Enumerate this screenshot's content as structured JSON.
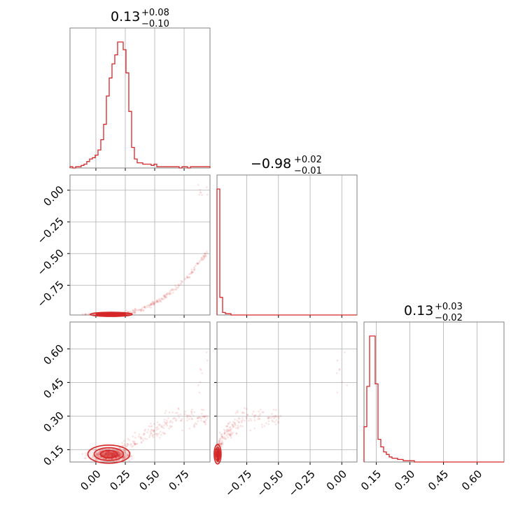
{
  "chart_data": {
    "type": "corner",
    "color": "#d62728",
    "parameters": [
      {
        "title": "0.13",
        "plus": "+0.08",
        "minus": "−0.10"
      },
      {
        "title": "−0.98",
        "plus": "+0.02",
        "minus": "−0.01"
      },
      {
        "title": "0.13",
        "plus": "+0.03",
        "minus": "−0.02"
      }
    ],
    "axes": [
      {
        "range": [
          -0.22,
          0.97
        ],
        "ticks": [
          0.0,
          0.25,
          0.5,
          0.75
        ],
        "tick_labels": [
          "0.00",
          "0.25",
          "0.50",
          "0.75"
        ]
      },
      {
        "range": [
          -0.985,
          0.12
        ],
        "ticks": [
          -0.75,
          -0.5,
          -0.25,
          0.0
        ],
        "tick_labels": [
          "−0.75",
          "−0.50",
          "−0.25",
          "0.00"
        ]
      },
      {
        "range": [
          0.095,
          0.72
        ],
        "ticks": [
          0.15,
          0.3,
          0.45,
          0.6
        ],
        "tick_labels": [
          "0.15",
          "0.30",
          "0.45",
          "0.60"
        ]
      }
    ],
    "hist_0": {
      "bin_edges_range": [
        -0.22,
        0.97
      ],
      "counts": [
        1,
        0,
        1,
        1,
        2,
        3,
        5,
        7,
        8,
        10,
        14,
        22,
        34,
        56,
        70,
        81,
        88,
        98,
        98,
        92,
        74,
        44,
        16,
        7,
        4,
        4,
        3,
        3,
        3,
        2,
        3,
        1,
        1,
        1,
        1,
        1,
        1,
        1,
        1,
        0,
        1,
        1,
        0,
        1,
        1,
        1,
        1,
        1,
        1,
        1
      ]
    },
    "hist_1": {
      "bin_edges_range": [
        -0.985,
        0.12
      ],
      "counts": [
        100,
        14,
        2,
        1,
        1,
        0,
        0,
        0,
        0,
        0,
        0,
        0,
        0,
        0,
        0,
        0,
        0,
        0,
        0,
        0,
        0,
        0,
        0,
        0,
        0,
        0,
        0,
        0,
        0,
        0,
        0,
        0,
        0,
        0,
        0,
        0,
        0,
        0,
        0,
        0,
        0,
        0,
        0,
        0,
        0,
        0,
        0,
        0,
        0,
        0
      ]
    },
    "hist_2": {
      "bin_edges_range": [
        0.095,
        0.72
      ],
      "counts": [
        28,
        60,
        100,
        100,
        62,
        18,
        12,
        8,
        6,
        4,
        3,
        3,
        2,
        2,
        1,
        1,
        1,
        1,
        0,
        0,
        0,
        0,
        0,
        0,
        0,
        0,
        0,
        0,
        0,
        0,
        0,
        0,
        0,
        0,
        0,
        0,
        0,
        0,
        0,
        0,
        0,
        0,
        0,
        0,
        0,
        0,
        0,
        0,
        0,
        0
      ]
    }
  }
}
